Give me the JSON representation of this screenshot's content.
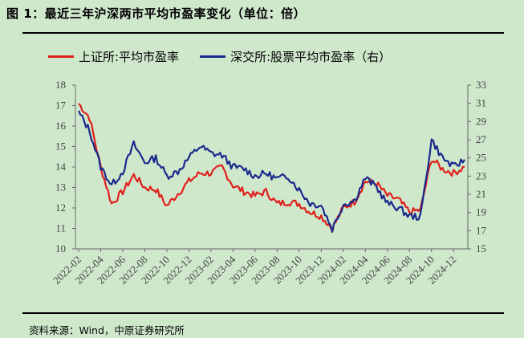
{
  "title": "图 1：最近三年沪深两市平均市盈率变化（单位：倍）",
  "source": "资料来源：Wind，中原证券研究所",
  "chart_data": {
    "type": "line",
    "title": "图 1：最近三年沪深两市平均市盈率变化（单位：倍）",
    "x_tick_labels": [
      "2022-02",
      "2022-04",
      "2022-06",
      "2022-08",
      "2022-10",
      "2022-12",
      "2023-02",
      "2023-04",
      "2023-06",
      "2023-08",
      "2023-10",
      "2023-12",
      "2024-02",
      "2024-04",
      "2024-06",
      "2024-08",
      "2024-10",
      "2024-12"
    ],
    "x": [
      "2022-02",
      "2022-03",
      "2022-04",
      "2022-05",
      "2022-06",
      "2022-07",
      "2022-08",
      "2022-09",
      "2022-10",
      "2022-11",
      "2022-12",
      "2023-01",
      "2023-02",
      "2023-03",
      "2023-04",
      "2023-05",
      "2023-06",
      "2023-07",
      "2023-08",
      "2023-09",
      "2023-10",
      "2023-11",
      "2023-12",
      "2024-01",
      "2024-02",
      "2024-03",
      "2024-04",
      "2024-05",
      "2024-06",
      "2024-07",
      "2024-08",
      "2024-09",
      "2024-10",
      "2024-11",
      "2024-12",
      "2025-01"
    ],
    "y_left": {
      "min": 10,
      "max": 18,
      "ticks": [
        10,
        11,
        12,
        13,
        14,
        15,
        16,
        17,
        18
      ]
    },
    "y_right": {
      "min": 15,
      "max": 33,
      "ticks": [
        15,
        17,
        19,
        21,
        23,
        25,
        27,
        29,
        31,
        33
      ]
    },
    "series": [
      {
        "name": "上证所:平均市盈率",
        "axis": "left",
        "color": "#e0201b",
        "values": [
          17.1,
          16.4,
          14.0,
          12.2,
          12.8,
          13.6,
          13.0,
          12.9,
          12.1,
          12.7,
          13.3,
          13.7,
          13.7,
          14.0,
          13.1,
          12.8,
          12.6,
          12.8,
          12.2,
          12.3,
          12.2,
          11.8,
          11.6,
          11.0,
          12.0,
          12.3,
          13.3,
          13.2,
          12.6,
          12.4,
          11.8,
          11.9,
          14.4,
          13.9,
          13.7,
          14.0
        ]
      },
      {
        "name": "深交所:股票平均市盈率（右）",
        "axis": "right",
        "color": "#1a2a8c",
        "values": [
          30.0,
          28.0,
          24.0,
          22.0,
          23.5,
          26.5,
          24.5,
          25.0,
          23.0,
          23.5,
          25.0,
          26.3,
          25.5,
          25.3,
          24.0,
          23.8,
          23.0,
          23.3,
          22.7,
          23.0,
          21.5,
          20.0,
          19.8,
          17.2,
          19.9,
          20.3,
          22.8,
          21.8,
          20.0,
          19.5,
          18.6,
          18.5,
          27.0,
          25.0,
          24.0,
          24.8
        ]
      }
    ],
    "legend_position": "top",
    "grid": false
  }
}
